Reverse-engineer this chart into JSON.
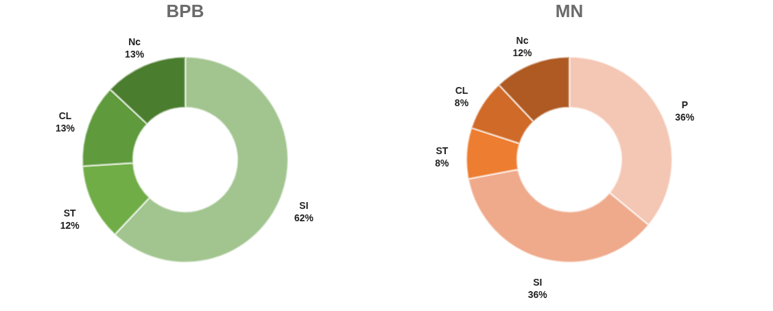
{
  "chart_data": [
    {
      "type": "donut",
      "title": "BPB",
      "categories": [
        "SI",
        "ST",
        "CL",
        "Nc"
      ],
      "values": [
        62,
        12,
        13,
        13
      ],
      "value_labels": [
        "62%",
        "12%",
        "13%",
        "13%"
      ],
      "colors": [
        "#a2c590",
        "#70ad47",
        "#5f9a3d",
        "#4b7d2f"
      ]
    },
    {
      "type": "donut",
      "title": "MN",
      "categories": [
        "P",
        "SI",
        "ST",
        "CL",
        "Nc"
      ],
      "values": [
        36,
        36,
        8,
        8,
        12
      ],
      "value_labels": [
        "36%",
        "36%",
        "8%",
        "8%",
        "12%"
      ],
      "colors": [
        "#f4c6b4",
        "#efaa8b",
        "#ed7d31",
        "#d06a28",
        "#ae5a22"
      ]
    }
  ]
}
